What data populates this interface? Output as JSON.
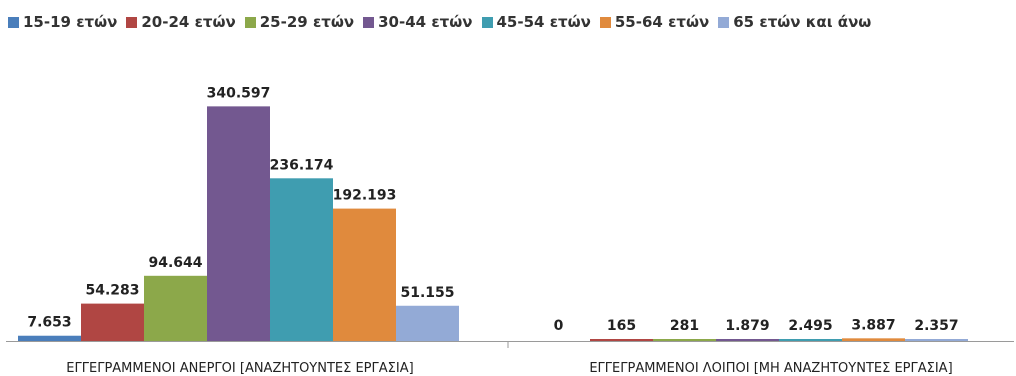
{
  "chart_data": {
    "type": "bar",
    "title": "",
    "xlabel": "",
    "ylabel": "",
    "ylim": [
      0,
      360000
    ],
    "grid": false,
    "legend_position": "top",
    "categories": [
      "ΕΓΓΕΓΡΑΜΜΕΝΟΙ ΑΝΕΡΓΟΙ [ΑΝΑΖΗΤΟΥΝΤΕΣ ΕΡΓΑΣΙΑ]",
      "ΕΓΓΕΓΡΑΜΜΕΝΟΙ ΛΟΙΠΟΙ [ΜΗ ΑΝΑΖΗΤΟΥΝΤΕΣ ΕΡΓΑΣΙΑ]"
    ],
    "series": [
      {
        "name": "15-19 ετών",
        "color": "#4a7ebb",
        "values": [
          7653,
          0
        ],
        "labels": [
          "7.653",
          "0"
        ]
      },
      {
        "name": "20-24 ετών",
        "color": "#b04643",
        "values": [
          54283,
          165
        ],
        "labels": [
          "54.283",
          "165"
        ]
      },
      {
        "name": "25-29 ετών",
        "color": "#8ca84a",
        "values": [
          94644,
          281
        ],
        "labels": [
          "94.644",
          "281"
        ]
      },
      {
        "name": "30-44 ετών",
        "color": "#735890",
        "values": [
          340597,
          1879
        ],
        "labels": [
          "340.597",
          "1.879"
        ]
      },
      {
        "name": "45-54 ετών",
        "color": "#3f9db0",
        "values": [
          236174,
          2495
        ],
        "labels": [
          "236.174",
          "2.495"
        ]
      },
      {
        "name": "55-64 ετών",
        "color": "#e08a3d",
        "values": [
          192193,
          3887
        ],
        "labels": [
          "192.193",
          "3.887"
        ]
      },
      {
        "name": "65 ετών και άνω",
        "color": "#93aad6",
        "values": [
          51155,
          2357
        ],
        "labels": [
          "51.155",
          "2.357"
        ]
      }
    ]
  }
}
